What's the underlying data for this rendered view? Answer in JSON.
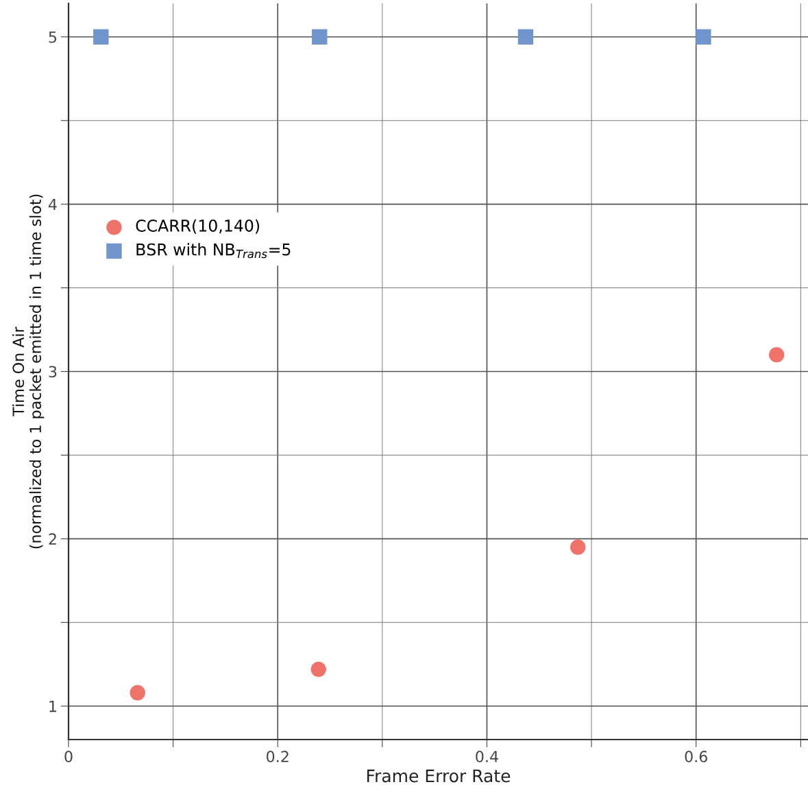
{
  "chart_data": {
    "type": "scatter",
    "xlabel": "Frame Error Rate",
    "ylabel": "Time On Air\n(normalized to 1 packet emitted in 1 time slot)",
    "series": [
      {
        "name": "CCARR(10,140)",
        "color": "#f0736a",
        "marker": "circle",
        "x": [
          0.066,
          0.239,
          0.487,
          0.677
        ],
        "values": [
          1.08,
          1.22,
          1.95,
          3.1
        ]
      },
      {
        "name": "BSR with NB$_{Trans}$=5",
        "color": "#7094cc",
        "marker": "square",
        "x": [
          0.031,
          0.24,
          0.437,
          0.607
        ],
        "values": [
          5,
          5,
          5,
          5
        ]
      }
    ],
    "xlim": [
      0,
      0.707
    ],
    "ylim": [
      0.8,
      5.2
    ],
    "xticks": [
      0,
      {
        "value": 0.1,
        "label": null
      },
      0.2,
      {
        "value": 0.3,
        "label": null
      },
      0.4,
      {
        "value": 0.5,
        "label": null
      },
      0.6,
      {
        "value": 0.7,
        "label": null
      }
    ],
    "yticks": [
      {
        "value": 1,
        "label": "1"
      },
      {
        "value": 1.5,
        "label": null
      },
      {
        "value": 2,
        "label": "2"
      },
      {
        "value": 2.5,
        "label": null
      },
      {
        "value": 3,
        "label": "3"
      },
      {
        "value": 3.5,
        "label": null
      },
      {
        "value": 4,
        "label": "4"
      },
      {
        "value": 4.5,
        "label": null
      },
      {
        "value": 5,
        "label": "5"
      }
    ],
    "grid": true,
    "legend": "left"
  }
}
